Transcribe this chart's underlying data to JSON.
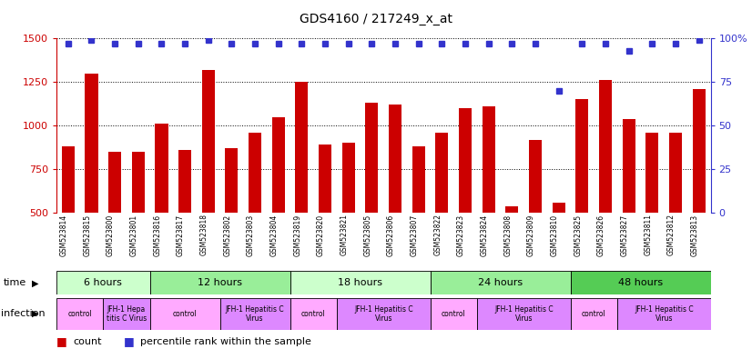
{
  "title": "GDS4160 / 217249_x_at",
  "categories": [
    "GSM523814",
    "GSM523815",
    "GSM523800",
    "GSM523801",
    "GSM523816",
    "GSM523817",
    "GSM523818",
    "GSM523802",
    "GSM523803",
    "GSM523804",
    "GSM523819",
    "GSM523820",
    "GSM523821",
    "GSM523805",
    "GSM523806",
    "GSM523807",
    "GSM523822",
    "GSM523823",
    "GSM523824",
    "GSM523808",
    "GSM523809",
    "GSM523810",
    "GSM523825",
    "GSM523826",
    "GSM523827",
    "GSM523811",
    "GSM523812",
    "GSM523813"
  ],
  "bar_values": [
    880,
    1300,
    850,
    850,
    1010,
    860,
    1320,
    870,
    960,
    1050,
    1250,
    890,
    900,
    1130,
    1120,
    880,
    960,
    1100,
    1110,
    540,
    920,
    560,
    1150,
    1260,
    1040,
    960,
    960,
    1210
  ],
  "percentile_values": [
    97,
    99,
    97,
    97,
    97,
    97,
    99,
    97,
    97,
    97,
    97,
    97,
    97,
    97,
    97,
    97,
    97,
    97,
    97,
    97,
    97,
    70,
    97,
    97,
    93,
    97,
    97,
    99
  ],
  "bar_color": "#cc0000",
  "dot_color": "#3333cc",
  "ylim_left": [
    500,
    1500
  ],
  "ylim_right": [
    0,
    100
  ],
  "yticks_left": [
    500,
    750,
    1000,
    1250,
    1500
  ],
  "yticks_right": [
    0,
    25,
    50,
    75,
    100
  ],
  "time_groups": [
    {
      "label": "6 hours",
      "start": 0,
      "end": 4,
      "color": "#ccffcc"
    },
    {
      "label": "12 hours",
      "start": 4,
      "end": 10,
      "color": "#99ee99"
    },
    {
      "label": "18 hours",
      "start": 10,
      "end": 16,
      "color": "#ccffcc"
    },
    {
      "label": "24 hours",
      "start": 16,
      "end": 22,
      "color": "#99ee99"
    },
    {
      "label": "48 hours",
      "start": 22,
      "end": 28,
      "color": "#55cc55"
    }
  ],
  "infection_groups": [
    {
      "label": "control",
      "start": 0,
      "end": 2,
      "color": "#ffaaff"
    },
    {
      "label": "JFH-1 Hepa\ntitis C Virus",
      "start": 2,
      "end": 4,
      "color": "#dd88ff"
    },
    {
      "label": "control",
      "start": 4,
      "end": 7,
      "color": "#ffaaff"
    },
    {
      "label": "JFH-1 Hepatitis C\nVirus",
      "start": 7,
      "end": 10,
      "color": "#dd88ff"
    },
    {
      "label": "control",
      "start": 10,
      "end": 12,
      "color": "#ffaaff"
    },
    {
      "label": "JFH-1 Hepatitis C\nVirus",
      "start": 12,
      "end": 16,
      "color": "#dd88ff"
    },
    {
      "label": "control",
      "start": 16,
      "end": 18,
      "color": "#ffaaff"
    },
    {
      "label": "JFH-1 Hepatitis C\nVirus",
      "start": 18,
      "end": 22,
      "color": "#dd88ff"
    },
    {
      "label": "control",
      "start": 22,
      "end": 24,
      "color": "#ffaaff"
    },
    {
      "label": "JFH-1 Hepatitis C\nVirus",
      "start": 24,
      "end": 28,
      "color": "#dd88ff"
    }
  ],
  "legend_count_color": "#cc0000",
  "legend_dot_color": "#3333cc"
}
